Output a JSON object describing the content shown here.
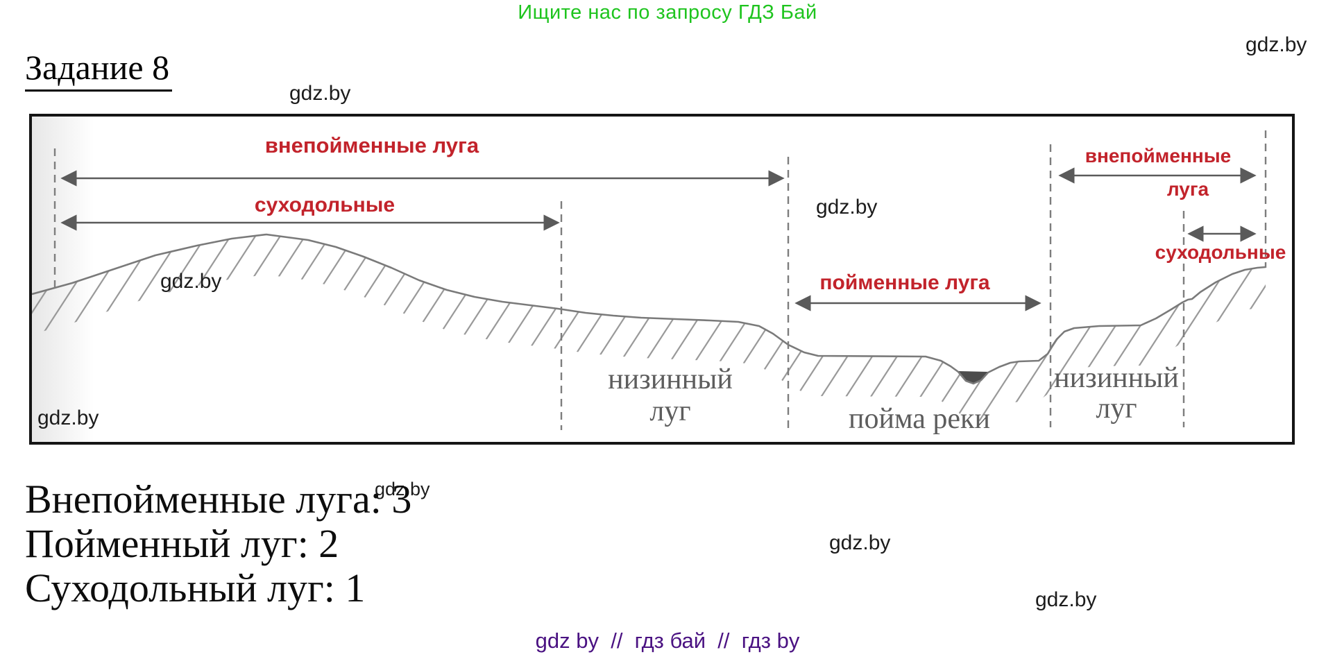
{
  "page": {
    "promo": "Ищите нас по запросу ГДЗ Бай",
    "watermark": "gdz.by",
    "title": "Задание 8",
    "footer": "gdz by  //  гдз бай  //  гдз by"
  },
  "diagram": {
    "floodless_meadows_left": "внепойменные луга",
    "dry_meadows_left": "суходольные",
    "floodplain_meadows": "пойменные луга",
    "floodless_meadows_right_line1": "внепойменные",
    "floodless_meadows_right_line2": "луга",
    "dry_meadows_right": "суходольные",
    "lowland_meadow_left_line1": "низинный",
    "lowland_meadow_left_line2": "луг",
    "river_floodplain": "пойма реки",
    "lowland_meadow_right_line1": "низинный",
    "lowland_meadow_right_line2": "луг"
  },
  "answers": [
    "Внепойменные луга: 3",
    "Пойменный луг: 2",
    "Суходольный луг: 1"
  ],
  "colors": {
    "promo_green": "#1ec41e",
    "label_red": "#c2232b",
    "footer_purple": "#4a1282",
    "diagram_gray": "#6a6a6a"
  }
}
